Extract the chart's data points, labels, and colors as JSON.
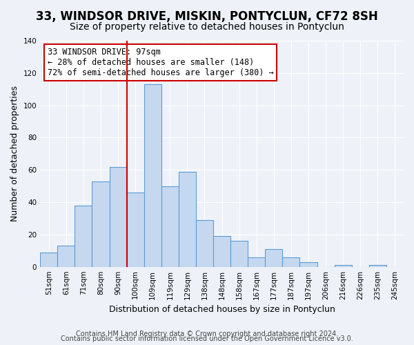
{
  "title": "33, WINDSOR DRIVE, MISKIN, PONTYCLUN, CF72 8SH",
  "subtitle": "Size of property relative to detached houses in Pontyclun",
  "xlabel": "Distribution of detached houses by size in Pontyclun",
  "ylabel": "Number of detached properties",
  "bin_labels": [
    "51sqm",
    "61sqm",
    "71sqm",
    "80sqm",
    "90sqm",
    "100sqm",
    "109sqm",
    "119sqm",
    "129sqm",
    "138sqm",
    "148sqm",
    "158sqm",
    "167sqm",
    "177sqm",
    "187sqm",
    "197sqm",
    "206sqm",
    "216sqm",
    "226sqm",
    "235sqm",
    "245sqm"
  ],
  "bar_values": [
    9,
    13,
    38,
    53,
    62,
    46,
    113,
    50,
    59,
    29,
    19,
    16,
    6,
    11,
    6,
    3,
    0,
    1,
    0,
    1,
    0
  ],
  "bar_color": "#c5d8f0",
  "bar_edge_color": "#5b9bd5",
  "vline_x_index": 5,
  "vline_color": "#cc0000",
  "annotation_text": "33 WINDSOR DRIVE: 97sqm\n← 28% of detached houses are smaller (148)\n72% of semi-detached houses are larger (380) →",
  "annotation_box_color": "#ffffff",
  "annotation_box_edge_color": "#cc0000",
  "ylim": [
    0,
    140
  ],
  "yticks": [
    0,
    20,
    40,
    60,
    80,
    100,
    120,
    140
  ],
  "footer_line1": "Contains HM Land Registry data © Crown copyright and database right 2024.",
  "footer_line2": "Contains public sector information licensed under the Open Government Licence v3.0.",
  "background_color": "#eef2f8",
  "plot_bg_color": "#eef2f8",
  "title_fontsize": 12,
  "subtitle_fontsize": 10,
  "xlabel_fontsize": 9,
  "ylabel_fontsize": 9,
  "tick_fontsize": 7.5,
  "footer_fontsize": 7,
  "annotation_fontsize": 8.5
}
